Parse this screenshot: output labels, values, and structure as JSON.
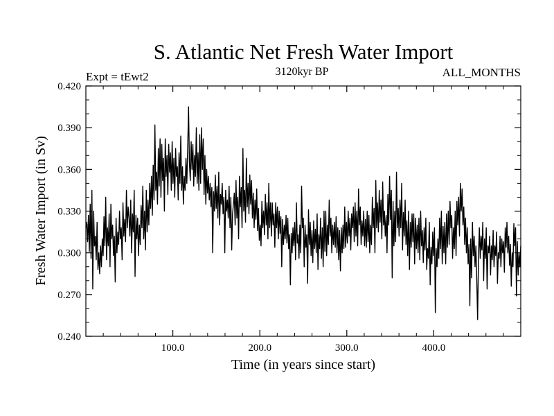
{
  "chart_data": {
    "type": "line",
    "title": "S. Atlantic Net Fresh Water Import",
    "subtitle_left": "Expt = tEwt2",
    "subtitle_center": "3120kyr BP",
    "subtitle_right": "ALL_MONTHS",
    "xlabel": "Time (in years since start)",
    "ylabel": "Fresh Water Import (in Sv)",
    "xlim": [
      0,
      500
    ],
    "ylim": [
      0.24,
      0.42
    ],
    "xticks": [
      100,
      200,
      300,
      400
    ],
    "xtick_labels": [
      "100.0",
      "200.0",
      "300.0",
      "400.0"
    ],
    "yticks": [
      0.24,
      0.27,
      0.3,
      0.33,
      0.36,
      0.39,
      0.42
    ],
    "ytick_labels": [
      "0.240",
      "0.270",
      "0.300",
      "0.330",
      "0.360",
      "0.390",
      "0.420"
    ],
    "grid": false,
    "series": [
      {
        "name": "Net fresh water import",
        "color": "#000000",
        "values": [
          0.318,
          0.322,
          0.308,
          0.327,
          0.301,
          0.335,
          0.296,
          0.345,
          0.274,
          0.33,
          0.305,
          0.312,
          0.295,
          0.322,
          0.288,
          0.3,
          0.285,
          0.305,
          0.29,
          0.31,
          0.298,
          0.326,
          0.305,
          0.34,
          0.295,
          0.318,
          0.305,
          0.328,
          0.29,
          0.335,
          0.31,
          0.32,
          0.298,
          0.312,
          0.279,
          0.325,
          0.3,
          0.315,
          0.306,
          0.33,
          0.31,
          0.318,
          0.295,
          0.336,
          0.312,
          0.324,
          0.308,
          0.345,
          0.318,
          0.333,
          0.325,
          0.312,
          0.338,
          0.3,
          0.328,
          0.315,
          0.345,
          0.283,
          0.327,
          0.31,
          0.325,
          0.298,
          0.32,
          0.306,
          0.334,
          0.318,
          0.348,
          0.31,
          0.33,
          0.302,
          0.345,
          0.315,
          0.338,
          0.32,
          0.35,
          0.332,
          0.355,
          0.327,
          0.363,
          0.338,
          0.392,
          0.345,
          0.358,
          0.335,
          0.375,
          0.348,
          0.382,
          0.34,
          0.378,
          0.352,
          0.368,
          0.33,
          0.382,
          0.355,
          0.37,
          0.342,
          0.378,
          0.358,
          0.372,
          0.345,
          0.38,
          0.35,
          0.368,
          0.34,
          0.375,
          0.355,
          0.362,
          0.338,
          0.372,
          0.35,
          0.384,
          0.345,
          0.362,
          0.335,
          0.355,
          0.345,
          0.368,
          0.35,
          0.375,
          0.405,
          0.365,
          0.352,
          0.38,
          0.36,
          0.378,
          0.348,
          0.37,
          0.355,
          0.39,
          0.35,
          0.372,
          0.345,
          0.385,
          0.35,
          0.39,
          0.36,
          0.382,
          0.342,
          0.37,
          0.335,
          0.36,
          0.343,
          0.355,
          0.338,
          0.35,
          0.333,
          0.347,
          0.3,
          0.344,
          0.33,
          0.356,
          0.332,
          0.348,
          0.325,
          0.358,
          0.32,
          0.342,
          0.335,
          0.35,
          0.328,
          0.34,
          0.3,
          0.345,
          0.33,
          0.338,
          0.325,
          0.348,
          0.318,
          0.34,
          0.302,
          0.328,
          0.335,
          0.343,
          0.32,
          0.352,
          0.325,
          0.34,
          0.31,
          0.355,
          0.333,
          0.347,
          0.318,
          0.375,
          0.33,
          0.345,
          0.322,
          0.368,
          0.333,
          0.35,
          0.328,
          0.356,
          0.335,
          0.352,
          0.325,
          0.343,
          0.318,
          0.338,
          0.324,
          0.346,
          0.316,
          0.332,
          0.309,
          0.32,
          0.305,
          0.337,
          0.318,
          0.33,
          0.313,
          0.342,
          0.32,
          0.336,
          0.31,
          0.35,
          0.318,
          0.336,
          0.312,
          0.336,
          0.32,
          0.328,
          0.304,
          0.336,
          0.318,
          0.333,
          0.31,
          0.33,
          0.314,
          0.326,
          0.29,
          0.324,
          0.306,
          0.32,
          0.31,
          0.327,
          0.307,
          0.325,
          0.303,
          0.313,
          0.277,
          0.314,
          0.3,
          0.318,
          0.305,
          0.322,
          0.295,
          0.336,
          0.307,
          0.313,
          0.296,
          0.32,
          0.3,
          0.348,
          0.318,
          0.325,
          0.29,
          0.32,
          0.304,
          0.313,
          0.278,
          0.331,
          0.306,
          0.322,
          0.298,
          0.316,
          0.293,
          0.323,
          0.303,
          0.317,
          0.3,
          0.328,
          0.288,
          0.313,
          0.303,
          0.325,
          0.296,
          0.318,
          0.29,
          0.33,
          0.301,
          0.33,
          0.298,
          0.32,
          0.306,
          0.338,
          0.312,
          0.325,
          0.3,
          0.32,
          0.306,
          0.322,
          0.304,
          0.326,
          0.3,
          0.318,
          0.295,
          0.316,
          0.287,
          0.318,
          0.3,
          0.32,
          0.303,
          0.333,
          0.304,
          0.322,
          0.307,
          0.33,
          0.312,
          0.325,
          0.302,
          0.328,
          0.318,
          0.333,
          0.308,
          0.336,
          0.312,
          0.33,
          0.305,
          0.346,
          0.32,
          0.333,
          0.306,
          0.323,
          0.312,
          0.33,
          0.305,
          0.324,
          0.304,
          0.33,
          0.308,
          0.327,
          0.3,
          0.32,
          0.306,
          0.34,
          0.318,
          0.332,
          0.3,
          0.352,
          0.318,
          0.336,
          0.315,
          0.345,
          0.322,
          0.338,
          0.31,
          0.351,
          0.32,
          0.33,
          0.312,
          0.327,
          0.3,
          0.342,
          0.32,
          0.355,
          0.324,
          0.345,
          0.282,
          0.337,
          0.305,
          0.33,
          0.308,
          0.358,
          0.318,
          0.332,
          0.312,
          0.338,
          0.318,
          0.35,
          0.302,
          0.329,
          0.312,
          0.338,
          0.306,
          0.323,
          0.298,
          0.33,
          0.288,
          0.322,
          0.304,
          0.328,
          0.308,
          0.328,
          0.292,
          0.325,
          0.303,
          0.32,
          0.3,
          0.325,
          0.295,
          0.33,
          0.305,
          0.316,
          0.293,
          0.318,
          0.302,
          0.325,
          0.288,
          0.303,
          0.296,
          0.322,
          0.277,
          0.304,
          0.292,
          0.315,
          0.298,
          0.318,
          0.257,
          0.303,
          0.29,
          0.31,
          0.296,
          0.325,
          0.303,
          0.33,
          0.292,
          0.319,
          0.3,
          0.322,
          0.292,
          0.328,
          0.304,
          0.33,
          0.306,
          0.337,
          0.318,
          0.327,
          0.296,
          0.318,
          0.303,
          0.33,
          0.298,
          0.337,
          0.32,
          0.34,
          0.312,
          0.35,
          0.33,
          0.346,
          0.32,
          0.333,
          0.306,
          0.325,
          0.3,
          0.318,
          0.292,
          0.306,
          0.262,
          0.31,
          0.282,
          0.322,
          0.298,
          0.312,
          0.29,
          0.305,
          0.281,
          0.252,
          0.296,
          0.318,
          0.296,
          0.312,
          0.302,
          0.322,
          0.28,
          0.31,
          0.296,
          0.318,
          0.274,
          0.305,
          0.3,
          0.312,
          0.284,
          0.305,
          0.295,
          0.316,
          0.29,
          0.305,
          0.298,
          0.315,
          0.278,
          0.3,
          0.296,
          0.312,
          0.29,
          0.31,
          0.3,
          0.308,
          0.286,
          0.318,
          0.304,
          0.322,
          0.3,
          0.312,
          0.291,
          0.306,
          0.276,
          0.3,
          0.29,
          0.321,
          0.305,
          0.318,
          0.269,
          0.308,
          0.284,
          0.3,
          0.29,
          0.305
        ]
      }
    ]
  }
}
